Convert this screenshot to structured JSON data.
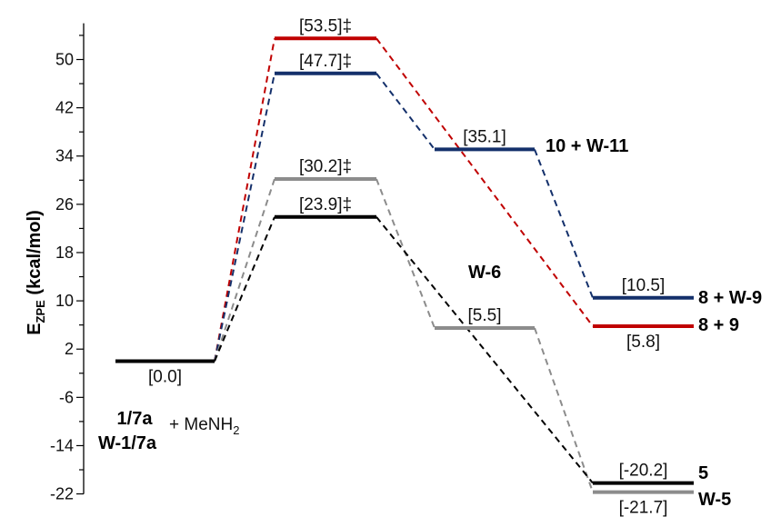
{
  "chart_data": {
    "type": "energy-diagram",
    "ylabel_main": "E",
    "ylabel_sub": "ZPE",
    "ylabel_rest": " (kcal/mol)",
    "ylim": [
      -22,
      56
    ],
    "yticks": [
      50,
      42,
      34,
      26,
      18,
      10,
      2,
      -6,
      -14,
      -22
    ],
    "colors": {
      "black": "#000000",
      "gray": "#8c8c8c",
      "red": "#c00000",
      "navy": "#14306b"
    },
    "levels": [
      {
        "id": "start",
        "value": 0.0,
        "label": "[0.0]",
        "color": "black",
        "slot": 0,
        "label_pos": "below"
      },
      {
        "id": "ts-black",
        "value": 23.9,
        "label": "[23.9]‡",
        "color": "black",
        "slot": 1,
        "label_pos": "above"
      },
      {
        "id": "ts-gray",
        "value": 30.2,
        "label": "[30.2]‡",
        "color": "gray",
        "slot": 1,
        "label_pos": "above"
      },
      {
        "id": "ts-navy",
        "value": 47.7,
        "label": "[47.7]‡",
        "color": "navy",
        "slot": 1,
        "label_pos": "above"
      },
      {
        "id": "ts-red",
        "value": 53.5,
        "label": "[53.5]‡",
        "color": "red",
        "slot": 1,
        "label_pos": "above"
      },
      {
        "id": "int-navy",
        "value": 35.1,
        "label": "[35.1]",
        "color": "navy",
        "slot": 2,
        "label_pos": "above"
      },
      {
        "id": "int-gray",
        "value": 5.5,
        "label": "[5.5]",
        "color": "gray",
        "slot": 2,
        "label_pos": "above"
      },
      {
        "id": "p-navy",
        "value": 10.5,
        "label": "[10.5]",
        "color": "navy",
        "slot": 3,
        "label_pos": "above"
      },
      {
        "id": "p-red",
        "value": 5.8,
        "label": "[5.8]",
        "color": "red",
        "slot": 3,
        "label_pos": "below"
      },
      {
        "id": "p-black",
        "value": -20.2,
        "label": "[-20.2]",
        "color": "black",
        "slot": 3,
        "label_pos": "above"
      },
      {
        "id": "p-gray",
        "value": -21.7,
        "label": "[-21.7]",
        "color": "gray",
        "slot": 3,
        "label_pos": "below"
      }
    ],
    "connections": [
      {
        "from": "start",
        "to": "ts-red",
        "color": "red"
      },
      {
        "from": "start",
        "to": "ts-navy",
        "color": "navy"
      },
      {
        "from": "start",
        "to": "ts-gray",
        "color": "gray"
      },
      {
        "from": "start",
        "to": "ts-black",
        "color": "black"
      },
      {
        "from": "ts-red",
        "to": "p-red",
        "color": "red"
      },
      {
        "from": "ts-navy",
        "to": "int-navy",
        "color": "navy"
      },
      {
        "from": "int-navy",
        "to": "p-navy",
        "color": "navy"
      },
      {
        "from": "ts-gray",
        "to": "int-gray",
        "color": "gray"
      },
      {
        "from": "int-gray",
        "to": "p-gray",
        "color": "gray"
      },
      {
        "from": "ts-black",
        "to": "p-black",
        "color": "black"
      }
    ],
    "species": {
      "int_navy": "10 + W-11",
      "int_gray": "W-6",
      "p_navy": "8 + W-9",
      "p_red": "8 + 9",
      "p_black": "5",
      "p_gray": "W-5",
      "start_top": "1/7a",
      "start_bottom": "W-1/7a",
      "reagent_main": "+ MeNH",
      "reagent_sub": "2"
    }
  }
}
